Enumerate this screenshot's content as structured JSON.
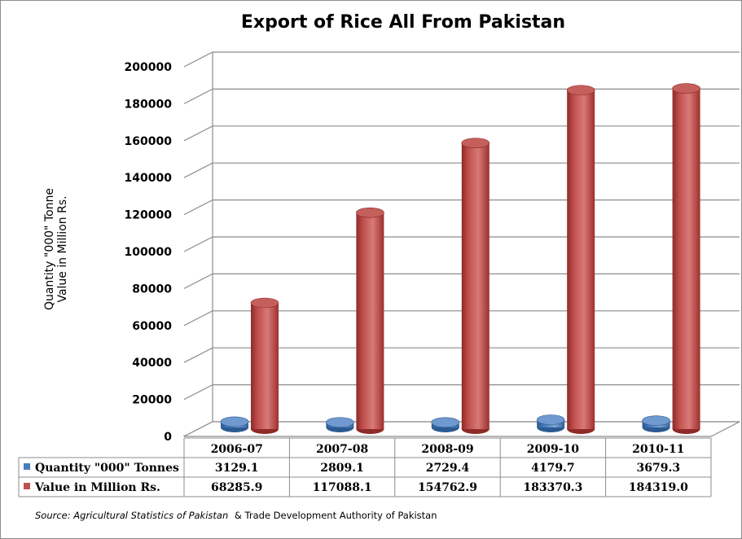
{
  "chart_data": {
    "type": "bar",
    "title": "Export of Rice All From Pakistan",
    "ylabel_lines": [
      "Quantity \"000\" Tonne",
      "Value in Million Rs."
    ],
    "ylim": [
      0,
      200000
    ],
    "yticks": [
      0,
      20000,
      40000,
      60000,
      80000,
      100000,
      120000,
      140000,
      160000,
      180000,
      200000
    ],
    "categories": [
      "2006-07",
      "2007-08",
      "2008-09",
      "2009-10",
      "2010-11"
    ],
    "series": [
      {
        "name": "Quantity \"000\" Tonnes",
        "color": "#4a7ebb",
        "values": [
          3129.1,
          2809.1,
          2729.4,
          4179.7,
          3679.3
        ],
        "labels": [
          "3129.1",
          "2809.1",
          "2729.4",
          "4179.7",
          "3679.3"
        ]
      },
      {
        "name": "Value in Million Rs.",
        "color": "#c0504d",
        "values": [
          68285.9,
          117088.1,
          154762.9,
          183370.3,
          184319.0
        ],
        "labels": [
          "68285.9",
          "117088.1",
          "154762.9",
          "183370.3",
          "184319.0"
        ]
      }
    ],
    "grid": true,
    "legend": "data-table"
  },
  "source": {
    "label": "Source:",
    "text_italic": "Agricultural Statistics of Pakistan",
    "text_normal": "& Trade Development Authority of Pakistan"
  }
}
